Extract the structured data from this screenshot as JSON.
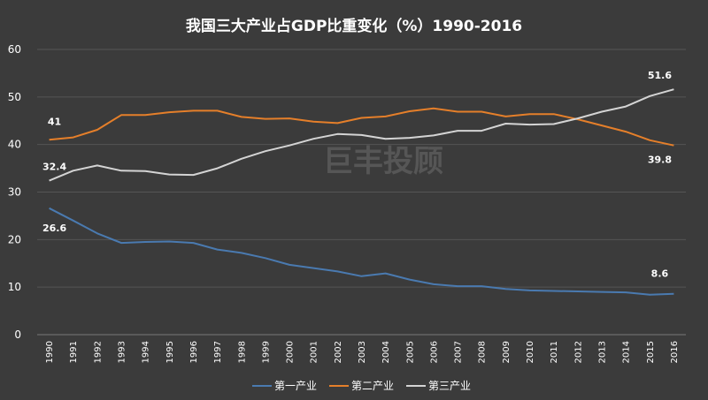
{
  "watermark": {
    "text": "巨丰投顾"
  },
  "chart_data": {
    "type": "line",
    "title": "我国三大产业占GDP比重变化（%）1990-2016",
    "xlabel": "",
    "ylabel": "",
    "ylim": [
      0,
      60
    ],
    "yticks": [
      "0",
      "10",
      "20",
      "30",
      "40",
      "50",
      "60"
    ],
    "grid": "horizontal",
    "legend": "bottom",
    "categories": [
      "1990",
      "1991",
      "1992",
      "1993",
      "1994",
      "1995",
      "1996",
      "1997",
      "1998",
      "1999",
      "2000",
      "2001",
      "2002",
      "2003",
      "2004",
      "2005",
      "2006",
      "2007",
      "2008",
      "2009",
      "2010",
      "2011",
      "2012",
      "2013",
      "2014",
      "2015",
      "2016"
    ],
    "series": [
      {
        "name": "第一产业",
        "color": "#4a7ab0",
        "values": [
          26.6,
          24.0,
          21.3,
          19.3,
          19.5,
          19.6,
          19.3,
          17.9,
          17.2,
          16.1,
          14.7,
          14.0,
          13.3,
          12.3,
          12.9,
          11.6,
          10.6,
          10.2,
          10.2,
          9.6,
          9.3,
          9.2,
          9.1,
          9.0,
          8.9,
          8.4,
          8.6
        ],
        "labels": [
          {
            "index": 0,
            "text": "26.6"
          },
          {
            "index": 26,
            "text": "8.6"
          }
        ]
      },
      {
        "name": "第二产业",
        "color": "#e57f2a",
        "values": [
          41.0,
          41.5,
          43.1,
          46.2,
          46.2,
          46.8,
          47.1,
          47.1,
          45.8,
          45.4,
          45.5,
          44.8,
          44.5,
          45.6,
          45.9,
          47.0,
          47.6,
          46.9,
          46.9,
          45.9,
          46.4,
          46.4,
          45.3,
          44.0,
          42.7,
          40.9,
          39.8
        ],
        "labels": [
          {
            "index": 0,
            "text": "41"
          },
          {
            "index": 26,
            "text": "39.8"
          }
        ]
      },
      {
        "name": "第三产业",
        "color": "#d4d4d4",
        "values": [
          32.4,
          34.5,
          35.6,
          34.5,
          34.4,
          33.7,
          33.6,
          35.0,
          37.0,
          38.6,
          39.8,
          41.2,
          42.2,
          42.0,
          41.2,
          41.4,
          41.9,
          42.9,
          42.9,
          44.4,
          44.2,
          44.3,
          45.5,
          46.9,
          48.0,
          50.2,
          51.6
        ],
        "labels": [
          {
            "index": 0,
            "text": "32.4"
          },
          {
            "index": 26,
            "text": "51.6"
          }
        ]
      }
    ]
  }
}
